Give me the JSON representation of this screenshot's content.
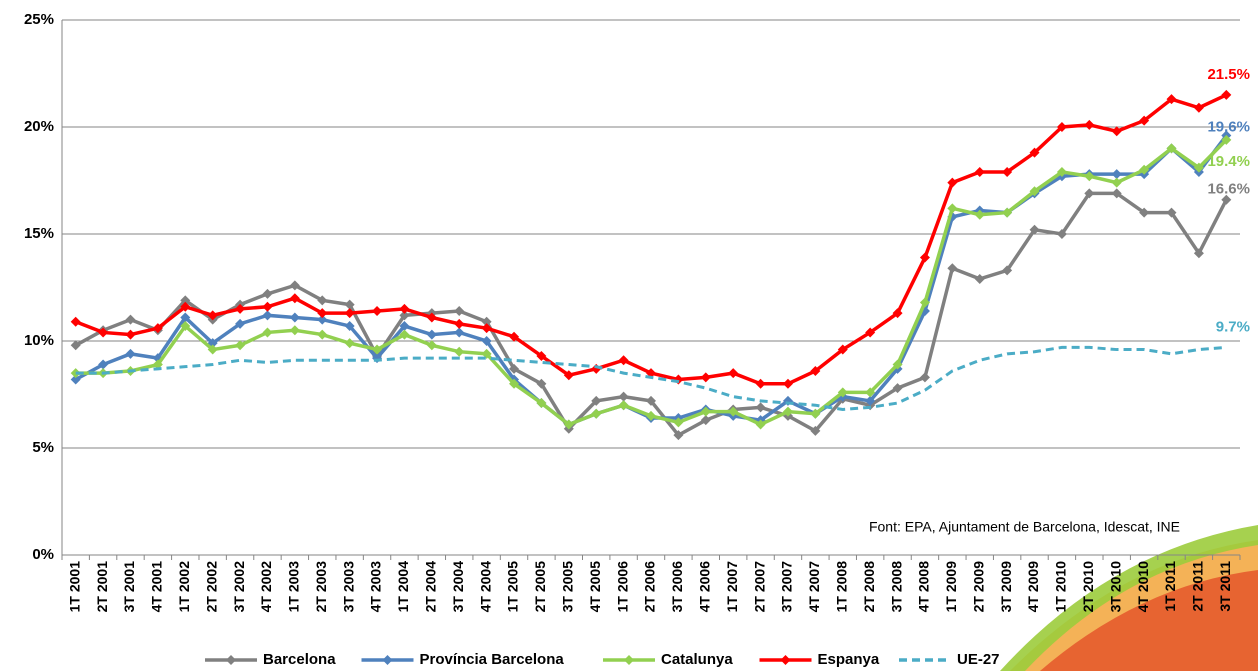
{
  "chart_data": {
    "type": "line",
    "annotation": "Font: EPA, Ajuntament de Barcelona, Idescat, INE",
    "categories": [
      "1T 2001",
      "2T 2001",
      "3T 2001",
      "4T 2001",
      "1T 2002",
      "2T 2002",
      "3T 2002",
      "4T 2002",
      "1T 2003",
      "2T 2003",
      "3T 2003",
      "4T 2003",
      "1T 2004",
      "2T 2004",
      "3T 2004",
      "4T 2004",
      "1T 2005",
      "2T 2005",
      "3T 2005",
      "4T 2005",
      "1T 2006",
      "2T 2006",
      "3T 2006",
      "4T 2006",
      "1T 2007",
      "2T 2007",
      "3T 2007",
      "4T 2007",
      "1T 2008",
      "2T 2008",
      "3T 2008",
      "4T 2008",
      "1T 2009",
      "2T 2009",
      "3T 2009",
      "4T 2009",
      "1T 2010",
      "2T 2010",
      "3T 2010",
      "4T 2010",
      "1T 2011",
      "2T 2011",
      "3T 2011"
    ],
    "ylim": [
      0,
      25
    ],
    "yticks": [
      {
        "value": 0,
        "label": "0%"
      },
      {
        "value": 5,
        "label": "5%"
      },
      {
        "value": 10,
        "label": "10%"
      },
      {
        "value": 15,
        "label": "15%"
      },
      {
        "value": 20,
        "label": "20%"
      },
      {
        "value": 25,
        "label": "25%"
      }
    ],
    "grid": true,
    "legend": "bottom",
    "series": [
      {
        "name": "Barcelona",
        "color": "#808080",
        "dashed": false,
        "markers": true,
        "values": [
          9.8,
          10.5,
          11.0,
          10.5,
          11.9,
          11.0,
          11.7,
          12.2,
          12.6,
          11.9,
          11.7,
          9.3,
          11.2,
          11.3,
          11.4,
          10.9,
          8.7,
          8.0,
          5.9,
          7.2,
          7.4,
          7.2,
          5.6,
          6.3,
          6.8,
          6.9,
          6.5,
          5.8,
          7.3,
          7.0,
          7.8,
          8.3,
          13.4,
          12.9,
          13.3,
          15.2,
          15.0,
          16.9,
          16.9,
          16.0,
          16.0,
          14.1,
          16.6
        ],
        "value_labels": [
          null,
          null,
          null,
          null,
          null,
          null,
          null,
          null,
          null,
          null,
          null,
          null,
          null,
          null,
          null,
          null,
          null,
          null,
          null,
          null,
          null,
          null,
          null,
          null,
          null,
          null,
          null,
          null,
          null,
          null,
          null,
          null,
          null,
          null,
          null,
          null,
          null,
          null,
          null,
          null,
          null,
          null,
          "16.6%"
        ]
      },
      {
        "name": "Província Barcelona",
        "color": "#4f81bd",
        "dashed": false,
        "markers": true,
        "values": [
          8.2,
          8.9,
          9.4,
          9.2,
          11.1,
          9.9,
          10.8,
          11.2,
          11.1,
          11.0,
          10.7,
          9.2,
          10.7,
          10.3,
          10.4,
          10.0,
          8.2,
          7.1,
          6.1,
          6.6,
          7.0,
          6.4,
          6.4,
          6.8,
          6.5,
          6.3,
          7.2,
          6.6,
          7.4,
          7.2,
          8.7,
          11.4,
          15.8,
          16.1,
          16.0,
          16.9,
          17.7,
          17.8,
          17.8,
          17.8,
          19.0,
          17.9,
          19.6
        ],
        "value_labels": [
          null,
          null,
          null,
          null,
          null,
          null,
          null,
          null,
          null,
          null,
          null,
          null,
          null,
          null,
          null,
          null,
          null,
          null,
          null,
          null,
          null,
          null,
          null,
          null,
          null,
          null,
          null,
          null,
          null,
          null,
          null,
          null,
          null,
          null,
          null,
          null,
          null,
          null,
          null,
          null,
          null,
          null,
          "19.6%"
        ]
      },
      {
        "name": "Catalunya",
        "color": "#92d050",
        "dashed": false,
        "markers": true,
        "values": [
          8.5,
          8.5,
          8.6,
          8.9,
          10.7,
          9.6,
          9.8,
          10.4,
          10.5,
          10.3,
          9.9,
          9.6,
          10.3,
          9.8,
          9.5,
          9.4,
          8.0,
          7.1,
          6.1,
          6.6,
          7.0,
          6.5,
          6.2,
          6.7,
          6.7,
          6.1,
          6.7,
          6.6,
          7.6,
          7.6,
          8.9,
          11.8,
          16.2,
          15.9,
          16.0,
          17.0,
          17.9,
          17.7,
          17.4,
          18.0,
          19.0,
          18.1,
          19.4
        ],
        "value_labels": [
          null,
          null,
          null,
          null,
          null,
          null,
          null,
          null,
          null,
          null,
          null,
          null,
          null,
          null,
          null,
          null,
          null,
          null,
          null,
          null,
          null,
          null,
          null,
          null,
          null,
          null,
          null,
          null,
          null,
          null,
          null,
          null,
          null,
          null,
          null,
          null,
          null,
          null,
          null,
          null,
          null,
          null,
          "19.4%"
        ]
      },
      {
        "name": "Espanya",
        "color": "#ff0000",
        "dashed": false,
        "markers": true,
        "values": [
          10.9,
          10.4,
          10.3,
          10.6,
          11.6,
          11.2,
          11.5,
          11.6,
          12.0,
          11.3,
          11.3,
          11.4,
          11.5,
          11.1,
          10.8,
          10.6,
          10.2,
          9.3,
          8.4,
          8.7,
          9.1,
          8.5,
          8.2,
          8.3,
          8.5,
          8.0,
          8.0,
          8.6,
          9.6,
          10.4,
          11.3,
          13.9,
          17.4,
          17.9,
          17.9,
          18.8,
          20.0,
          20.1,
          19.8,
          20.3,
          21.3,
          20.9,
          21.5
        ],
        "value_labels": [
          null,
          null,
          null,
          null,
          null,
          null,
          null,
          null,
          null,
          null,
          null,
          null,
          null,
          null,
          null,
          null,
          null,
          null,
          null,
          null,
          null,
          null,
          null,
          null,
          null,
          null,
          null,
          null,
          null,
          null,
          null,
          null,
          null,
          null,
          null,
          null,
          null,
          null,
          null,
          null,
          null,
          null,
          "21.5%"
        ]
      },
      {
        "name": "UE-27",
        "color": "#4bacc6",
        "dashed": true,
        "markers": false,
        "values": [
          8.5,
          8.5,
          8.6,
          8.7,
          8.8,
          8.9,
          9.1,
          9.0,
          9.1,
          9.1,
          9.1,
          9.1,
          9.2,
          9.2,
          9.2,
          9.2,
          9.1,
          9.0,
          8.9,
          8.8,
          8.5,
          8.3,
          8.1,
          7.8,
          7.4,
          7.2,
          7.1,
          7.0,
          6.8,
          6.9,
          7.1,
          7.7,
          8.6,
          9.1,
          9.4,
          9.5,
          9.7,
          9.7,
          9.6,
          9.6,
          9.4,
          9.6,
          9.7
        ],
        "value_labels": [
          null,
          null,
          null,
          null,
          null,
          null,
          null,
          null,
          null,
          null,
          null,
          null,
          null,
          null,
          null,
          null,
          null,
          null,
          null,
          null,
          null,
          null,
          null,
          null,
          null,
          null,
          null,
          null,
          null,
          null,
          null,
          null,
          null,
          null,
          null,
          null,
          null,
          null,
          null,
          null,
          null,
          null,
          "9.7%"
        ]
      }
    ]
  }
}
